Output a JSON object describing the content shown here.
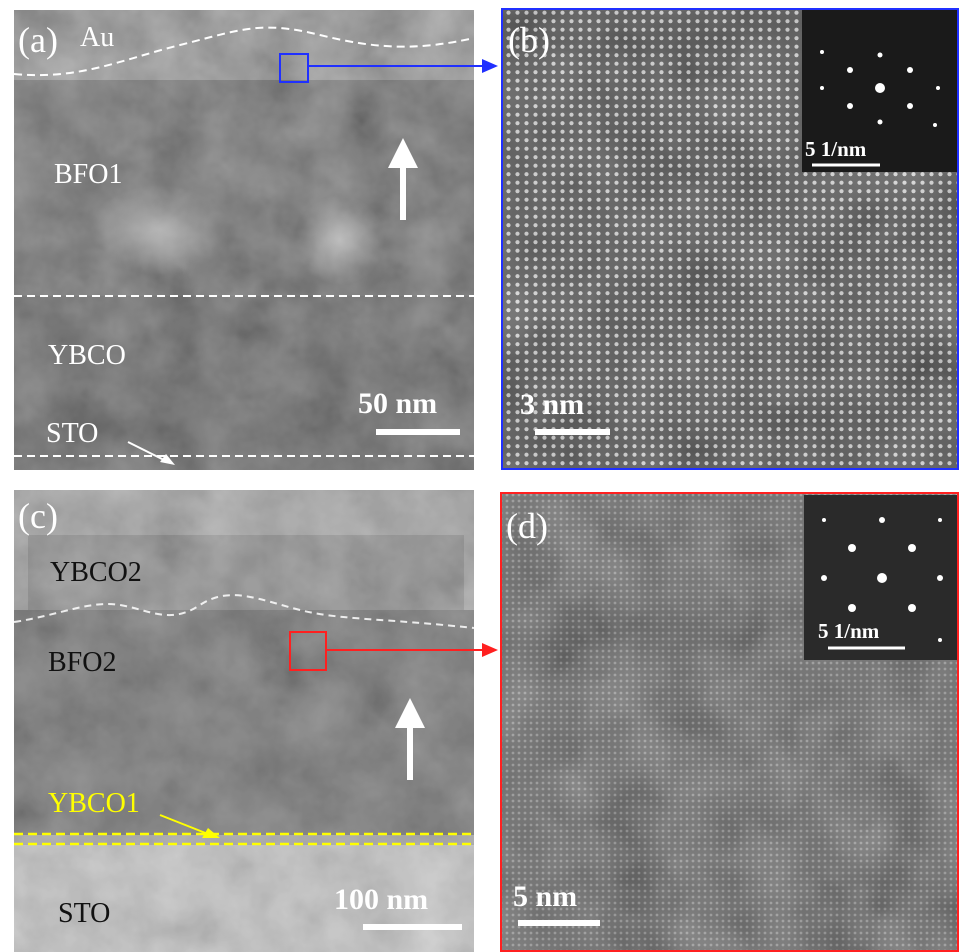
{
  "panels": [
    {
      "label": "(a)",
      "annotations": [
        "Au",
        "BFO1",
        "YBCO",
        "STO"
      ],
      "scale_bar": "50 nm"
    },
    {
      "label": "(b)",
      "scale_bar": "3 nm",
      "inset_scale_bar": "5 1/nm"
    },
    {
      "label": "(c)",
      "annotations": [
        "YBCO2",
        "BFO2",
        "YBCO1",
        "STO"
      ],
      "scale_bar": "100 nm"
    },
    {
      "label": "(d)",
      "scale_bar": "5 nm",
      "inset_scale_bar": "5 1/nm"
    }
  ]
}
